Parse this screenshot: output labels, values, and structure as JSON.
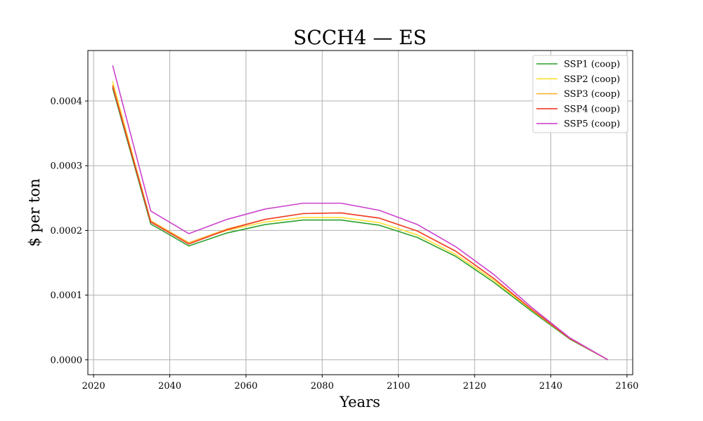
{
  "chart_data": {
    "type": "line",
    "title": "SCCH4 — ES",
    "xlabel": "Years",
    "ylabel": "$ per ton",
    "xlim": [
      2018.5,
      2161.5
    ],
    "ylim": [
      -2.3e-05,
      0.000478
    ],
    "xticks": [
      2020,
      2040,
      2060,
      2080,
      2100,
      2120,
      2140,
      2160
    ],
    "xtick_labels": [
      "2020",
      "2040",
      "2060",
      "2080",
      "2100",
      "2120",
      "2140",
      "2160"
    ],
    "yticks": [
      0.0,
      0.0001,
      0.0002,
      0.0003,
      0.0004
    ],
    "ytick_labels": [
      "0.0000",
      "0.0001",
      "0.0002",
      "0.0003",
      "0.0004"
    ],
    "grid": true,
    "legend_position": "top-right",
    "x": [
      2025,
      2035,
      2045,
      2055,
      2065,
      2075,
      2085,
      2095,
      2105,
      2115,
      2125,
      2135,
      2145,
      2155
    ],
    "series": [
      {
        "name": "SSP1 (coop)",
        "color": "#2ca02c",
        "values": [
          0.00042,
          0.00021,
          0.000176,
          0.000196,
          0.000209,
          0.000216,
          0.000216,
          0.000208,
          0.000189,
          0.00016,
          0.00012,
          7.5e-05,
          3.2e-05,
          0.0
        ]
      },
      {
        "name": "SSP2 (coop)",
        "color": "#ffdf33",
        "values": [
          0.00043,
          0.000214,
          0.000181,
          0.0002,
          0.000213,
          0.00022,
          0.00022,
          0.000212,
          0.000193,
          0.000163,
          0.000123,
          7.7e-05,
          3.3e-05,
          0.0
        ]
      },
      {
        "name": "SSP3 (coop)",
        "color": "#f9b233",
        "values": [
          0.000425,
          0.000215,
          0.000181,
          0.000202,
          0.000217,
          0.000226,
          0.000227,
          0.000219,
          0.000199,
          0.000168,
          0.000126,
          7.8e-05,
          3.3e-05,
          0.0
        ]
      },
      {
        "name": "SSP4 (coop)",
        "color": "#f03c2c",
        "values": [
          0.000423,
          0.000213,
          0.000179,
          0.000201,
          0.000217,
          0.000226,
          0.000227,
          0.000219,
          0.000199,
          0.000168,
          0.000126,
          7.8e-05,
          3.3e-05,
          0.0
        ]
      },
      {
        "name": "SSP5 (coop)",
        "color": "#cc44cc",
        "values": [
          0.000455,
          0.00023,
          0.000195,
          0.000217,
          0.000233,
          0.000242,
          0.000242,
          0.000231,
          0.000209,
          0.000175,
          0.000132,
          8.1e-05,
          3.4e-05,
          0.0
        ]
      }
    ]
  }
}
